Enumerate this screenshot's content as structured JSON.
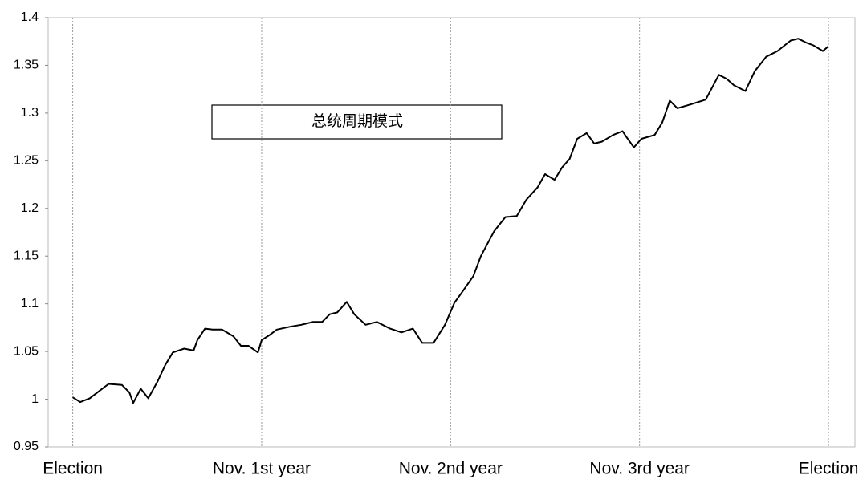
{
  "chart_data": {
    "type": "line",
    "annotation": "总统周期模式",
    "color": "#000000",
    "grid": true,
    "xlim": [
      -0.13,
      4.14
    ],
    "ylim": [
      0.95,
      1.4
    ],
    "yticks": [
      0.95,
      1,
      1.05,
      1.1,
      1.15,
      1.2,
      1.25,
      1.3,
      1.35,
      1.4
    ],
    "xticks": [
      {
        "value": 0,
        "label": "Election"
      },
      {
        "value": 1,
        "label": "Nov. 1st year"
      },
      {
        "value": 2,
        "label": "Nov. 2nd year"
      },
      {
        "value": 3,
        "label": "Nov. 3rd year"
      },
      {
        "value": 4,
        "label": "Election"
      }
    ],
    "x": [
      0,
      0.04,
      0.09,
      0.13,
      0.19,
      0.26,
      0.3,
      0.32,
      0.36,
      0.4,
      0.45,
      0.49,
      0.53,
      0.59,
      0.64,
      0.66,
      0.7,
      0.74,
      0.79,
      0.85,
      0.89,
      0.93,
      0.98,
      1.0,
      1.04,
      1.08,
      1.15,
      1.21,
      1.27,
      1.32,
      1.36,
      1.4,
      1.45,
      1.49,
      1.55,
      1.61,
      1.68,
      1.74,
      1.8,
      1.85,
      1.91,
      1.97,
      2.02,
      2.06,
      2.12,
      2.16,
      2.23,
      2.29,
      2.35,
      2.4,
      2.46,
      2.5,
      2.55,
      2.59,
      2.63,
      2.67,
      2.72,
      2.76,
      2.8,
      2.86,
      2.91,
      2.93,
      2.97,
      3.01,
      3.08,
      3.12,
      3.16,
      3.2,
      3.27,
      3.35,
      3.42,
      3.46,
      3.5,
      3.56,
      3.61,
      3.67,
      3.73,
      3.8,
      3.84,
      3.88,
      3.92,
      3.97,
      4.0
    ],
    "values": [
      1.002,
      0.997,
      1.001,
      1.007,
      1.016,
      1.015,
      1.007,
      0.996,
      1.011,
      1.001,
      1.019,
      1.036,
      1.049,
      1.053,
      1.051,
      1.062,
      1.074,
      1.073,
      1.073,
      1.066,
      1.056,
      1.056,
      1.049,
      1.062,
      1.067,
      1.073,
      1.076,
      1.078,
      1.081,
      1.081,
      1.089,
      1.091,
      1.102,
      1.089,
      1.078,
      1.081,
      1.074,
      1.07,
      1.074,
      1.059,
      1.059,
      1.078,
      1.101,
      1.112,
      1.129,
      1.15,
      1.176,
      1.191,
      1.192,
      1.209,
      1.222,
      1.236,
      1.23,
      1.243,
      1.252,
      1.273,
      1.279,
      1.268,
      1.27,
      1.277,
      1.281,
      1.275,
      1.264,
      1.273,
      1.277,
      1.29,
      1.313,
      1.305,
      1.309,
      1.314,
      1.34,
      1.336,
      1.329,
      1.323,
      1.344,
      1.359,
      1.365,
      1.376,
      1.378,
      1.374,
      1.371,
      1.365,
      1.37
    ]
  }
}
